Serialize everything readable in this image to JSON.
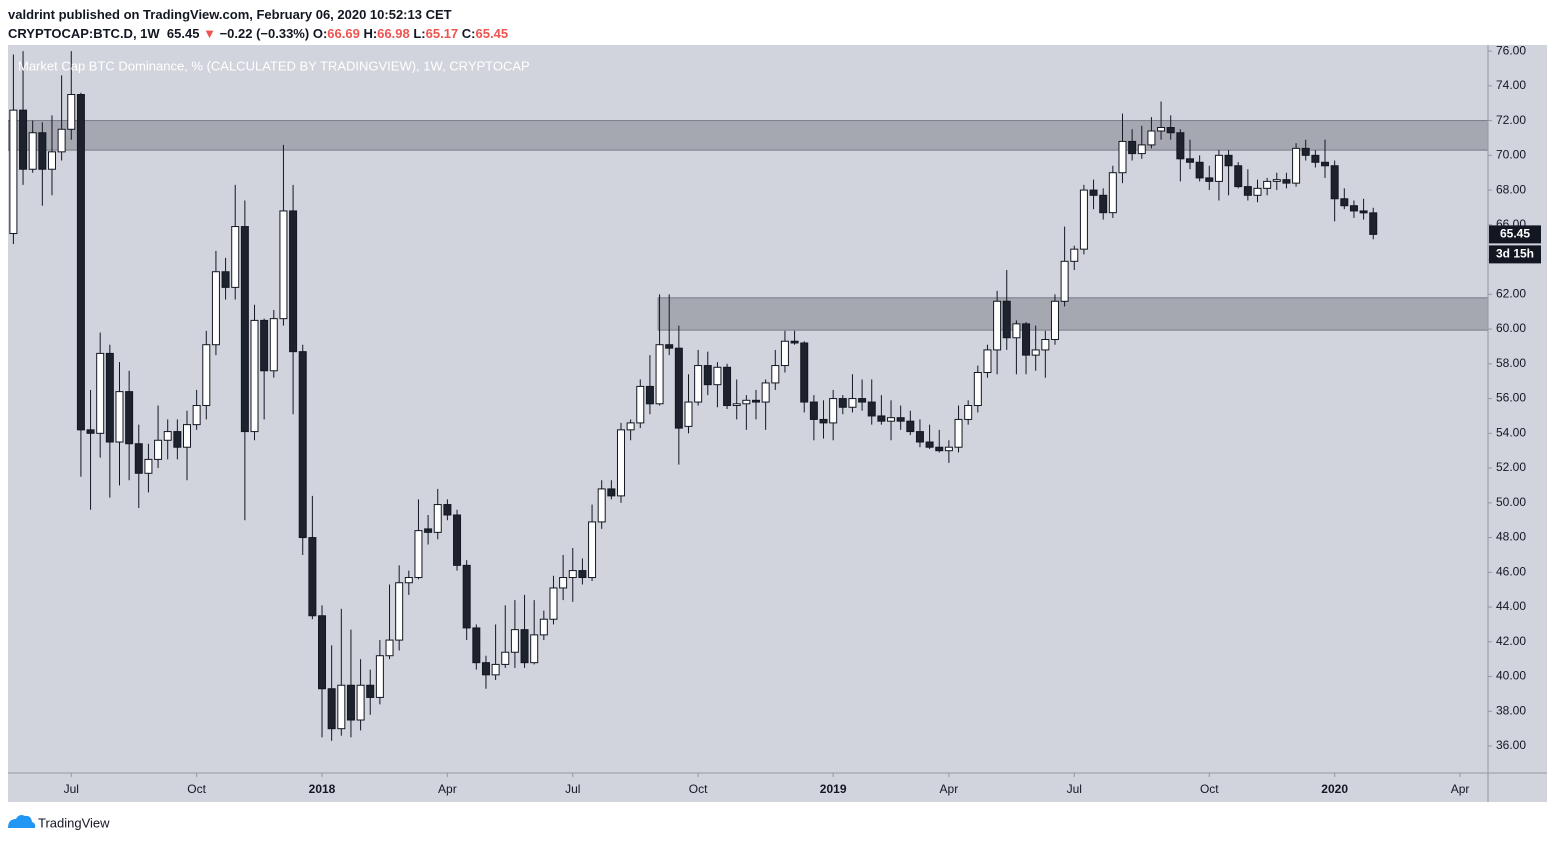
{
  "header": {
    "publisher": "valdrint published on TradingView.com, February 06, 2020 10:52:13 CET",
    "symbol": "CRYPTOCAP:BTC.D, 1W",
    "change_arrow": "▼",
    "change": "−0.22 (−0.33%)",
    "ohlc_labels": [
      "O:",
      "H:",
      "L:",
      "C:"
    ]
  },
  "chart_data": {
    "type": "candlestick",
    "title": "Market Cap BTC Dominance, % (CALCULATED BY TRADINGVIEW), 1W, CRYPTOCAP",
    "open": [
      65.5,
      72.6,
      69.2,
      71.3,
      69.2,
      70.2,
      71.5,
      73.5,
      54.2,
      54.0,
      58.6,
      53.5,
      56.4,
      53.4,
      51.7,
      52.5,
      53.6,
      54.1,
      53.2,
      54.5,
      55.6,
      59.1,
      63.3,
      62.4,
      65.9,
      54.1,
      60.5,
      57.6,
      60.6,
      66.8,
      58.7,
      48.0,
      43.5,
      39.3,
      37.0,
      39.5,
      37.5,
      39.5,
      38.8,
      41.2,
      42.1,
      45.4,
      45.7,
      48.5,
      48.3,
      49.9,
      49.3,
      46.4,
      42.8,
      40.8,
      40.1,
      40.7,
      41.4,
      42.7,
      40.8,
      42.4,
      43.3,
      45.1,
      45.7,
      46.1,
      45.7,
      48.9,
      50.8,
      50.4,
      54.2,
      54.6,
      56.7,
      55.7,
      59.1,
      58.9,
      54.4,
      55.8,
      57.9,
      56.8,
      57.8,
      55.6,
      55.7,
      55.9,
      55.8,
      56.9,
      57.9,
      59.3,
      59.2,
      55.8,
      54.8,
      54.6,
      56.0,
      55.5,
      56.0,
      55.8,
      55.0,
      54.7,
      54.9,
      54.7,
      54.1,
      53.5,
      53.2,
      53.0,
      53.2,
      54.8,
      55.6,
      57.5,
      58.8,
      61.6,
      59.5,
      60.3,
      58.5,
      58.8,
      59.4,
      61.6,
      63.9,
      64.6,
      68.0,
      67.7,
      66.7,
      69.0,
      70.8,
      70.1,
      70.6,
      71.4,
      71.6,
      71.3,
      69.8,
      69.6,
      68.7,
      68.5,
      70.0,
      69.4,
      68.2,
      67.7,
      68.1,
      68.5,
      68.6,
      68.4,
      70.4,
      70.0,
      69.6,
      69.4,
      67.5,
      67.1,
      66.8,
      66.69
    ],
    "high": [
      75.8,
      76.0,
      72.0,
      71.9,
      72.3,
      74.6,
      76.0,
      73.6,
      56.5,
      59.8,
      59.1,
      58.1,
      57.6,
      54.5,
      53.4,
      55.6,
      54.8,
      54.8,
      55.3,
      56.5,
      59.9,
      64.5,
      64.1,
      68.3,
      67.4,
      61.4,
      60.6,
      61.1,
      70.6,
      68.3,
      59.1,
      50.4,
      44.1,
      41.8,
      43.9,
      42.7,
      41.0,
      40.4,
      42.1,
      45.3,
      46.4,
      46.1,
      50.2,
      49.3,
      50.8,
      50.2,
      49.6,
      46.7,
      43.0,
      41.2,
      43.0,
      44.1,
      44.4,
      44.7,
      44.4,
      43.8,
      45.8,
      47.0,
      47.4,
      46.8,
      49.9,
      51.3,
      51.3,
      54.6,
      54.8,
      57.1,
      58.5,
      62.0,
      62.0,
      60.2,
      57.4,
      58.8,
      58.7,
      58.1,
      58.0,
      57.1,
      56.2,
      56.5,
      57.1,
      58.8,
      59.9,
      59.9,
      59.3,
      56.2,
      55.9,
      56.5,
      56.2,
      57.4,
      57.1,
      57.1,
      56.2,
      55.9,
      55.6,
      55.3,
      54.8,
      54.5,
      54.2,
      53.6,
      55.6,
      55.9,
      57.9,
      59.1,
      62.2,
      63.4,
      60.5,
      60.4,
      60.2,
      59.9,
      62.0,
      65.9,
      64.8,
      68.3,
      68.6,
      68.1,
      69.4,
      72.4,
      71.5,
      71.7,
      72.2,
      73.1,
      72.3,
      71.5,
      70.9,
      70.0,
      69.4,
      70.3,
      70.3,
      69.61,
      69.2,
      68.6,
      68.7,
      69.0,
      69.0,
      70.7,
      70.9,
      70.3,
      70.9,
      69.7,
      68.1,
      67.4,
      67.5,
      66.98
    ],
    "low": [
      64.9,
      68.3,
      69.0,
      67.1,
      67.7,
      69.7,
      70.9,
      51.5,
      49.6,
      52.6,
      50.3,
      51.0,
      51.3,
      49.7,
      50.6,
      52.0,
      52.5,
      52.5,
      51.3,
      54.2,
      54.8,
      58.5,
      61.7,
      61.7,
      49.0,
      53.6,
      54.8,
      57.2,
      60.2,
      55.1,
      47.0,
      43.3,
      36.5,
      36.3,
      36.6,
      36.5,
      36.9,
      37.8,
      38.4,
      41.0,
      41.5,
      44.7,
      45.6,
      47.6,
      47.9,
      49.0,
      46.1,
      42.1,
      40.4,
      39.3,
      39.8,
      40.5,
      40.5,
      40.5,
      40.7,
      42.1,
      43.0,
      44.4,
      44.3,
      45.3,
      45.5,
      48.5,
      50.2,
      50.0,
      53.6,
      54.3,
      55.1,
      55.6,
      58.5,
      52.2,
      54.0,
      55.6,
      56.2,
      55.5,
      55.4,
      54.8,
      54.2,
      54.8,
      54.2,
      56.5,
      57.5,
      59.1,
      55.2,
      53.6,
      53.7,
      53.6,
      55.1,
      55.2,
      55.3,
      54.5,
      54.5,
      53.6,
      54.2,
      53.9,
      53.2,
      53.1,
      52.9,
      52.3,
      52.9,
      54.5,
      55.2,
      57.2,
      57.4,
      58.8,
      57.4,
      57.4,
      57.6,
      57.2,
      59.1,
      61.3,
      63.4,
      64.3,
      66.9,
      66.3,
      66.4,
      68.4,
      69.7,
      69.8,
      70.4,
      70.9,
      70.9,
      68.5,
      69.2,
      68.5,
      68.0,
      67.4,
      67.7,
      68.1,
      67.4,
      67.3,
      67.7,
      68.0,
      68.1,
      68.2,
      69.7,
      69.3,
      68.7,
      66.2,
      66.9,
      66.4,
      66.3,
      65.17
    ],
    "close": [
      72.6,
      69.2,
      71.3,
      69.2,
      70.2,
      71.5,
      73.5,
      54.2,
      54.0,
      58.6,
      53.5,
      56.4,
      53.4,
      51.7,
      52.5,
      53.6,
      54.1,
      53.2,
      54.5,
      55.6,
      59.1,
      63.3,
      62.4,
      65.9,
      54.1,
      60.5,
      57.6,
      60.6,
      66.8,
      58.7,
      48.0,
      43.5,
      39.3,
      37.0,
      39.5,
      37.5,
      39.5,
      38.8,
      41.2,
      42.1,
      45.4,
      45.7,
      48.4,
      48.3,
      49.9,
      49.3,
      46.4,
      42.8,
      40.8,
      40.1,
      40.7,
      41.4,
      42.7,
      40.8,
      42.4,
      43.3,
      45.1,
      45.7,
      46.1,
      45.7,
      48.9,
      50.8,
      50.4,
      54.2,
      54.6,
      56.7,
      55.7,
      59.1,
      58.9,
      54.3,
      55.8,
      57.9,
      56.8,
      57.8,
      55.6,
      55.7,
      55.9,
      55.8,
      56.9,
      57.9,
      59.3,
      59.2,
      55.8,
      54.8,
      54.6,
      56.0,
      55.5,
      56.0,
      55.8,
      55.0,
      54.7,
      54.9,
      54.7,
      54.1,
      53.5,
      53.2,
      53.0,
      53.2,
      54.8,
      55.6,
      57.5,
      58.8,
      61.6,
      59.5,
      60.3,
      58.5,
      58.8,
      59.4,
      61.6,
      63.9,
      64.6,
      68.0,
      67.7,
      66.7,
      69.0,
      70.8,
      70.1,
      70.6,
      71.4,
      71.6,
      71.3,
      69.8,
      69.6,
      68.7,
      68.5,
      70.0,
      69.4,
      68.2,
      67.7,
      68.1,
      68.5,
      68.6,
      68.4,
      70.4,
      70.0,
      69.6,
      69.4,
      67.5,
      67.1,
      66.8,
      66.69,
      65.45
    ],
    "up_color": "#ffffff",
    "down_color": "#1e222d",
    "xlim": [
      -0.56,
      152.9
    ],
    "ylim": [
      34.45,
      76.35
    ],
    "xticks": [
      {
        "value": 6,
        "label": "Jul"
      },
      {
        "value": 19,
        "label": "Oct"
      },
      {
        "value": 32,
        "label": "2018"
      },
      {
        "value": 45,
        "label": "Apr"
      },
      {
        "value": 58,
        "label": "Jul"
      },
      {
        "value": 71,
        "label": "Oct"
      },
      {
        "value": 85,
        "label": "2019"
      },
      {
        "value": 97,
        "label": "Apr"
      },
      {
        "value": 110,
        "label": "Jul"
      },
      {
        "value": 124,
        "label": "Oct"
      },
      {
        "value": 137,
        "label": "2020"
      },
      {
        "value": 150,
        "label": "Apr"
      }
    ],
    "yticks": [
      {
        "value": 36,
        "label": "36.00"
      },
      {
        "value": 38,
        "label": "38.00"
      },
      {
        "value": 40,
        "label": "40.00"
      },
      {
        "value": 42,
        "label": "42.00"
      },
      {
        "value": 44,
        "label": "44.00"
      },
      {
        "value": 46,
        "label": "46.00"
      },
      {
        "value": 48,
        "label": "48.00"
      },
      {
        "value": 50,
        "label": "50.00"
      },
      {
        "value": 52,
        "label": "52.00"
      },
      {
        "value": 54,
        "label": "54.00"
      },
      {
        "value": 56,
        "label": "56.00"
      },
      {
        "value": 58,
        "label": "58.00"
      },
      {
        "value": 60,
        "label": "60.00"
      },
      {
        "value": 62,
        "label": "62.00"
      },
      {
        "value": 64,
        "label": "64.00"
      },
      {
        "value": 66,
        "label": "66.00"
      },
      {
        "value": 68,
        "label": "68.00"
      },
      {
        "value": 70,
        "label": "70.00"
      },
      {
        "value": 72,
        "label": "72.00"
      },
      {
        "value": 74,
        "label": "74.00"
      },
      {
        "value": 76,
        "label": "76.00"
      }
    ],
    "zones": [
      {
        "start": -0.56,
        "top": 72.0,
        "bottom": 70.3
      },
      {
        "start": 66.85,
        "top": 61.8,
        "bottom": 59.94
      }
    ],
    "countdown": "3d 15h",
    "grid": false
  },
  "footer": {
    "brand": "TradingView"
  }
}
